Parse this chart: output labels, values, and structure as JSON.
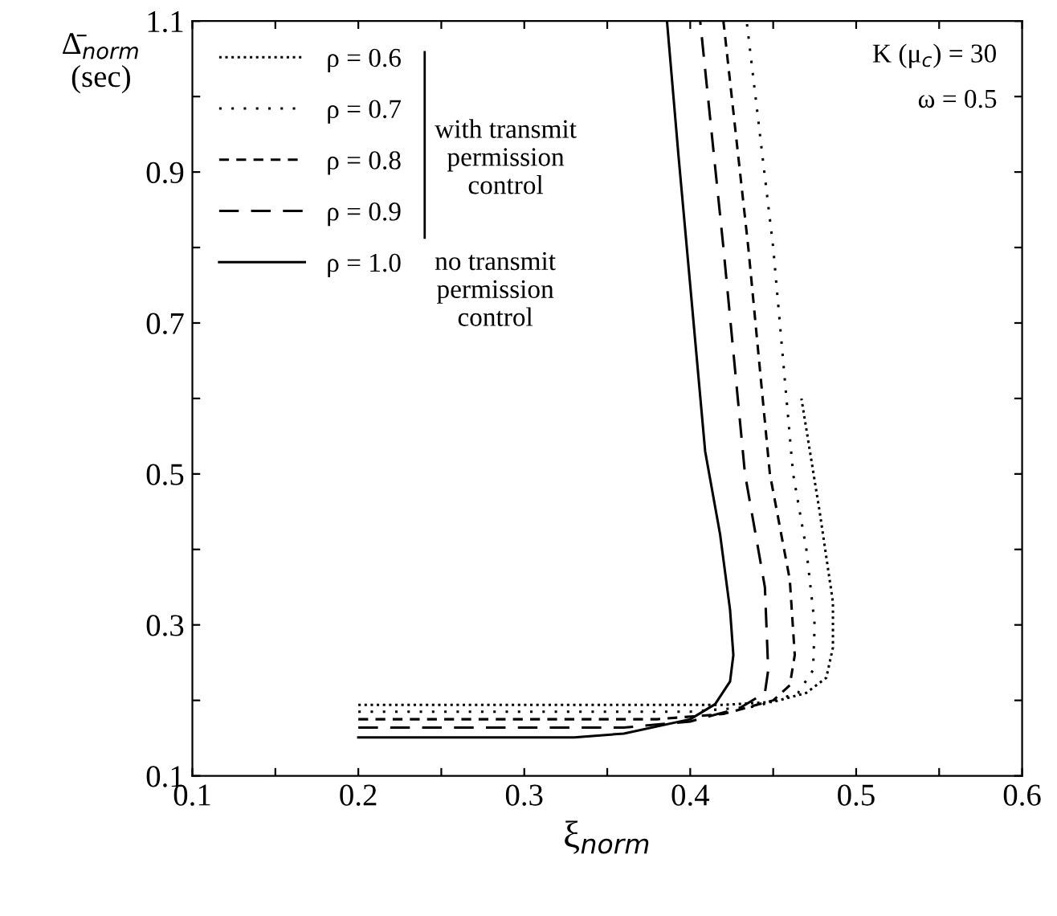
{
  "chart_data": {
    "type": "line",
    "xlabel": "ξ$_{norm}$",
    "ylabel": "Δ̄$_{norm}$\n(sec)",
    "series": [
      {
        "name": "ρ = 0.6",
        "color": "#000000",
        "line_style": "dotted",
        "x": [
          0.2,
          0.42,
          0.45,
          0.47,
          0.482,
          0.486,
          0.486,
          0.478,
          0.467
        ],
        "values": [
          0.194,
          0.194,
          0.198,
          0.21,
          0.23,
          0.27,
          0.33,
          0.45,
          0.6
        ]
      },
      {
        "name": "ρ = 0.7",
        "color": "#000000",
        "line_style": "dotted",
        "x": [
          0.2,
          0.4,
          0.44,
          0.465,
          0.474,
          0.475,
          0.47,
          0.462,
          0.45,
          0.434
        ],
        "values": [
          0.185,
          0.185,
          0.192,
          0.21,
          0.24,
          0.3,
          0.4,
          0.5,
          0.8,
          1.1
        ]
      },
      {
        "name": "ρ = 0.8",
        "color": "#000000",
        "line_style": "dashed",
        "x": [
          0.2,
          0.38,
          0.42,
          0.45,
          0.46,
          0.463,
          0.46,
          0.448,
          0.435,
          0.42
        ],
        "values": [
          0.175,
          0.175,
          0.182,
          0.2,
          0.22,
          0.26,
          0.36,
          0.5,
          0.8,
          1.1
        ]
      },
      {
        "name": "ρ = 0.9",
        "color": "#000000",
        "line_style": "dashed",
        "x": [
          0.2,
          0.36,
          0.4,
          0.43,
          0.445,
          0.447,
          0.445,
          0.433,
          0.42,
          0.406
        ],
        "values": [
          0.164,
          0.164,
          0.172,
          0.19,
          0.21,
          0.24,
          0.35,
          0.5,
          0.8,
          1.1
        ]
      },
      {
        "name": "ρ = 1.0",
        "color": "#000000",
        "line_style": "solid",
        "x": [
          0.2,
          0.33,
          0.36,
          0.4,
          0.415,
          0.424,
          0.426,
          0.424,
          0.418,
          0.409,
          0.4,
          0.393,
          0.386
        ],
        "values": [
          0.151,
          0.151,
          0.156,
          0.175,
          0.195,
          0.225,
          0.26,
          0.32,
          0.42,
          0.53,
          0.75,
          0.92,
          1.1
        ]
      }
    ],
    "annotations": [
      "with transmit\npermission\ncontrol",
      "no transmit\npermission\ncontrol",
      "K (μ$_{c}$) = 30",
      "ω = 0.5"
    ],
    "xlim": [
      0.1,
      0.6
    ],
    "ylim": [
      0.1,
      1.1
    ],
    "xticks": [
      0.1,
      {
        "value": 0.15,
        "label": null
      },
      0.2,
      {
        "value": 0.25,
        "label": null
      },
      0.3,
      {
        "value": 0.35,
        "label": null
      },
      0.4,
      {
        "value": 0.45,
        "label": null
      },
      0.5,
      {
        "value": 0.55,
        "label": null
      },
      0.6
    ],
    "yticks": [
      0.1,
      {
        "value": 0.2,
        "label": null
      },
      0.3,
      {
        "value": 0.4,
        "label": null
      },
      0.5,
      {
        "value": 0.6,
        "label": null
      },
      0.7,
      {
        "value": 0.8,
        "label": null
      },
      0.9,
      {
        "value": 1.0,
        "label": null
      },
      1.1
    ],
    "legend": "top left",
    "grid": false
  }
}
